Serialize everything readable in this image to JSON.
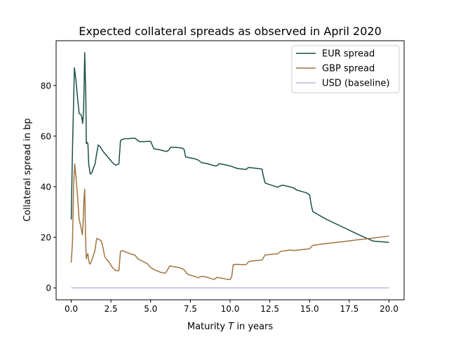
{
  "chart_data": {
    "type": "line",
    "title": "Expected collateral spreads as observed in April 2020",
    "xlabel_prefix": "Maturity ",
    "xlabel_var": "T",
    "xlabel_suffix": " in years",
    "ylabel": "Collateral spread in bp",
    "xlim": [
      -0.95,
      20.95
    ],
    "ylim": [
      -4.7,
      97.7
    ],
    "xticks": [
      0.0,
      2.5,
      5.0,
      7.5,
      10.0,
      12.5,
      15.0,
      17.5,
      20.0
    ],
    "xtick_labels": [
      "0.0",
      "2.5",
      "5.0",
      "7.5",
      "10.0",
      "12.5",
      "15.0",
      "17.5",
      "20.0"
    ],
    "yticks": [
      0,
      20,
      40,
      60,
      80
    ],
    "ytick_labels": [
      "0",
      "20",
      "40",
      "60",
      "80"
    ],
    "legend_position": "top-right",
    "series": [
      {
        "name": "EUR spread",
        "color": "#1a4f47",
        "x": [
          0.0,
          0.08,
          0.2,
          0.3,
          0.4,
          0.5,
          0.6,
          0.65,
          0.72,
          0.78,
          0.85,
          0.92,
          0.95,
          1.0,
          1.05,
          1.1,
          1.2,
          1.3,
          1.4,
          1.5,
          1.6,
          1.7,
          1.8,
          1.9,
          2.0,
          2.2,
          2.4,
          2.6,
          2.8,
          3.0,
          3.1,
          3.25,
          3.4,
          3.6,
          4.0,
          4.15,
          4.3,
          4.5,
          4.8,
          5.0,
          5.2,
          5.5,
          5.8,
          6.0,
          6.15,
          6.25,
          6.5,
          6.8,
          7.0,
          7.1,
          7.2,
          7.4,
          7.8,
          8.0,
          8.2,
          8.5,
          9.0,
          9.15,
          9.3,
          9.6,
          10.0,
          10.2,
          10.4,
          10.6,
          11.0,
          11.15,
          11.3,
          11.6,
          12.0,
          12.1,
          12.2,
          12.4,
          12.8,
          13.0,
          13.15,
          13.3,
          13.6,
          14.0,
          14.15,
          14.4,
          14.8,
          15.0,
          15.1,
          15.2,
          16.0,
          17.0,
          18.0,
          19.0,
          20.0
        ],
        "values": [
          27,
          55,
          87,
          82,
          75,
          69,
          68.5,
          68,
          65,
          70,
          93,
          75,
          57,
          57.5,
          57,
          49,
          45,
          45.5,
          47.5,
          49,
          53,
          56.5,
          56,
          55,
          54,
          52.5,
          51,
          49.5,
          48.5,
          49,
          58.2,
          58.8,
          59,
          59,
          59.2,
          58.5,
          57.8,
          57.8,
          57.9,
          57.9,
          55,
          54.7,
          54.2,
          53.9,
          54.5,
          55.6,
          55.6,
          55.4,
          55.2,
          54.8,
          51.8,
          51.5,
          51,
          50.5,
          49.5,
          49.2,
          48.3,
          48.2,
          49.1,
          48.8,
          48.2,
          47.8,
          47.3,
          47.1,
          46.8,
          47.6,
          47.5,
          47.3,
          47,
          44,
          41.5,
          41,
          40.2,
          39.8,
          40.3,
          40.6,
          40.2,
          39.5,
          38.8,
          38.3,
          37.6,
          36.8,
          33,
          30.2,
          27.3,
          24.3,
          21.3,
          18.5,
          18
        ]
      },
      {
        "name": "GBP spread",
        "color": "#a07440",
        "x": [
          0.0,
          0.08,
          0.15,
          0.22,
          0.3,
          0.4,
          0.5,
          0.6,
          0.7,
          0.75,
          0.8,
          0.85,
          0.9,
          0.95,
          1.0,
          1.05,
          1.1,
          1.15,
          1.2,
          1.3,
          1.4,
          1.5,
          1.6,
          1.7,
          1.8,
          1.9,
          2.0,
          2.1,
          2.2,
          2.4,
          2.6,
          2.8,
          3.0,
          3.1,
          3.25,
          3.5,
          3.7,
          4.0,
          4.2,
          4.5,
          4.8,
          5.0,
          5.3,
          5.6,
          5.9,
          6.0,
          6.2,
          6.5,
          6.8,
          7.0,
          7.1,
          7.3,
          7.5,
          7.8,
          8.0,
          8.2,
          8.5,
          8.9,
          9.0,
          9.2,
          9.5,
          9.8,
          10.0,
          10.1,
          10.2,
          10.4,
          10.8,
          11.0,
          11.2,
          11.5,
          11.8,
          12.0,
          12.2,
          12.5,
          12.8,
          13.0,
          13.2,
          13.5,
          13.8,
          14.0,
          14.2,
          14.5,
          14.8,
          15.0,
          15.2,
          16.0,
          17.0,
          18.0,
          19.0,
          20.0
        ],
        "values": [
          10,
          18,
          40,
          49,
          44,
          36,
          27,
          24.5,
          21,
          26,
          35,
          39,
          20,
          11.5,
          13,
          13.5,
          11,
          9.5,
          9.5,
          11,
          13,
          15,
          19.5,
          19.3,
          19,
          18.5,
          16,
          12.5,
          11.5,
          10,
          8,
          6.8,
          6.8,
          14.5,
          14.7,
          14,
          13.5,
          13,
          11.5,
          10.5,
          9.5,
          8,
          7,
          6.2,
          5.8,
          6.5,
          8.7,
          8.3,
          8,
          7.5,
          7.2,
          5.5,
          5,
          4.5,
          4,
          4.6,
          4.3,
          3.5,
          3.4,
          4.2,
          3.8,
          3.4,
          3.3,
          4.5,
          9.2,
          9.3,
          9.2,
          9.2,
          10.5,
          10.7,
          10.9,
          11,
          13,
          13.2,
          13.4,
          13.5,
          14.5,
          14.7,
          15,
          14.8,
          14.9,
          15.1,
          15.3,
          15.5,
          16.8,
          17.5,
          18.2,
          19,
          19.7,
          20.5
        ]
      },
      {
        "name": "USD (baseline)",
        "color": "#c3b3e0",
        "x": [
          0.0,
          20.0
        ],
        "values": [
          0,
          0
        ]
      }
    ]
  }
}
